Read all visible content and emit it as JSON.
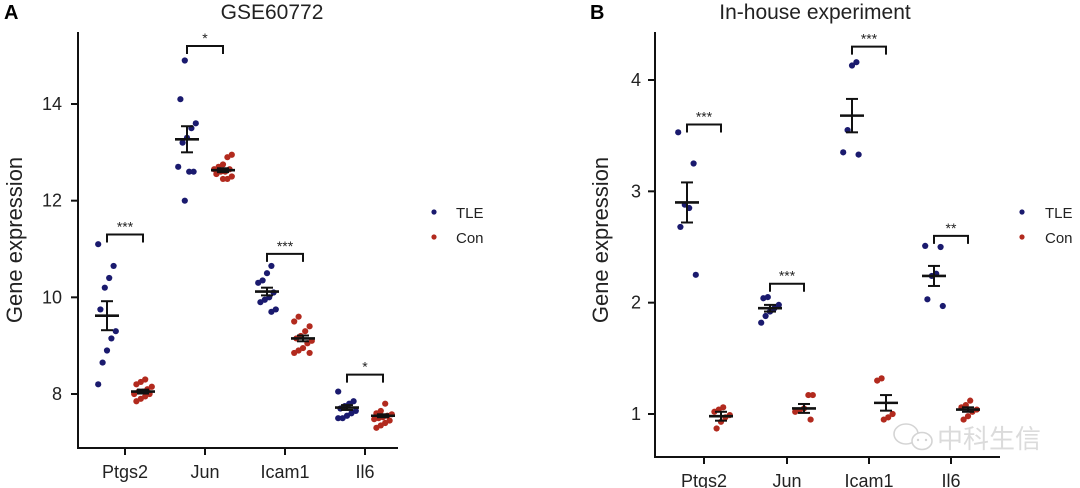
{
  "legend": {
    "items": [
      {
        "label": "TLE",
        "color": "#1a1a6e"
      },
      {
        "label": "Con",
        "color": "#b22a1e"
      }
    ]
  },
  "watermark": {
    "text": "中科生信",
    "icon": "wechat-icon"
  },
  "chart_data": [
    {
      "panel": "A",
      "type": "scatter",
      "title": "GSE60772",
      "xlabel": "",
      "ylabel": "Gene expression",
      "categories": [
        "Ptgs2",
        "Jun",
        "Icam1",
        "Il6"
      ],
      "yticks": [
        8,
        10,
        12,
        14
      ],
      "ylim": [
        6.9,
        15.6
      ],
      "grid": false,
      "legend_position": "right",
      "series": [
        {
          "name": "TLE",
          "color": "#1a1a6e",
          "points": [
            [
              11.1,
              10.65,
              10.4,
              10.2,
              9.75,
              9.3,
              9.15,
              8.9,
              8.65,
              8.2
            ],
            [
              14.9,
              14.1,
              13.6,
              13.5,
              13.3,
              13.2,
              12.7,
              12.6,
              12.6,
              12.0
            ],
            [
              10.65,
              10.5,
              10.35,
              10.3,
              10.1,
              10.0,
              9.95,
              9.9,
              9.75,
              9.7
            ],
            [
              8.05,
              7.85,
              7.8,
              7.75,
              7.7,
              7.65,
              7.6,
              7.55,
              7.5,
              7.5
            ]
          ],
          "mean": [
            9.62,
            13.27,
            10.12,
            7.72
          ],
          "sem": [
            0.3,
            0.27,
            0.08,
            0.05
          ]
        },
        {
          "name": "Con",
          "color": "#b22a1e",
          "points": [
            [
              8.3,
              8.25,
              8.2,
              8.15,
              8.1,
              8.05,
              8.05,
              8.0,
              8.0,
              7.95,
              7.9,
              7.85
            ],
            [
              12.95,
              12.9,
              12.75,
              12.7,
              12.65,
              12.65,
              12.6,
              12.6,
              12.55,
              12.5,
              12.45,
              12.45
            ],
            [
              9.6,
              9.5,
              9.4,
              9.3,
              9.2,
              9.15,
              9.1,
              9.05,
              8.95,
              8.9,
              8.85,
              8.85
            ],
            [
              7.8,
              7.65,
              7.6,
              7.58,
              7.55,
              7.52,
              7.5,
              7.48,
              7.45,
              7.4,
              7.35,
              7.3
            ]
          ],
          "mean": [
            8.05,
            12.63,
            9.15,
            7.55
          ],
          "sem": [
            0.04,
            0.04,
            0.06,
            0.03
          ]
        }
      ],
      "significance": [
        "***",
        "*",
        "***",
        "*"
      ],
      "sig_bracket_y": [
        11.3,
        15.2,
        10.9,
        8.4
      ]
    },
    {
      "panel": "B",
      "type": "scatter",
      "title": "In-house experiment",
      "xlabel": "",
      "ylabel": "Gene expression",
      "categories": [
        "Ptgs2",
        "Jun",
        "Icam1",
        "Il6"
      ],
      "yticks": [
        1,
        2,
        3,
        4
      ],
      "ylim": [
        0.6,
        4.43
      ],
      "grid": false,
      "legend_position": "right",
      "series": [
        {
          "name": "TLE",
          "color": "#1a1a6e",
          "points": [
            [
              3.53,
              3.25,
              2.85,
              2.88,
              2.68,
              2.25
            ],
            [
              2.05,
              2.04,
              1.98,
              1.95,
              1.92,
              1.88,
              1.82
            ],
            [
              4.16,
              4.13,
              3.55,
              3.35,
              3.33
            ],
            [
              2.51,
              2.5,
              2.26,
              2.24,
              2.03,
              1.97
            ]
          ],
          "mean": [
            2.9,
            1.95,
            3.68,
            2.24
          ],
          "sem": [
            0.18,
            0.03,
            0.15,
            0.09
          ]
        },
        {
          "name": "Con",
          "color": "#b22a1e",
          "points": [
            [
              1.06,
              1.04,
              1.02,
              0.99,
              0.97,
              0.93,
              0.87
            ],
            [
              1.17,
              1.17,
              1.05,
              1.03,
              1.02,
              0.95
            ],
            [
              1.32,
              1.3,
              1.0,
              0.97,
              0.95
            ],
            [
              1.12,
              1.08,
              1.06,
              1.04,
              1.02,
              0.98,
              0.95
            ]
          ],
          "mean": [
            0.98,
            1.05,
            1.1,
            1.04
          ],
          "sem": [
            0.04,
            0.04,
            0.07,
            0.02
          ]
        }
      ],
      "significance": [
        "***",
        "***",
        "***",
        "**"
      ],
      "sig_bracket_y": [
        3.6,
        2.17,
        4.3,
        2.6
      ]
    }
  ]
}
